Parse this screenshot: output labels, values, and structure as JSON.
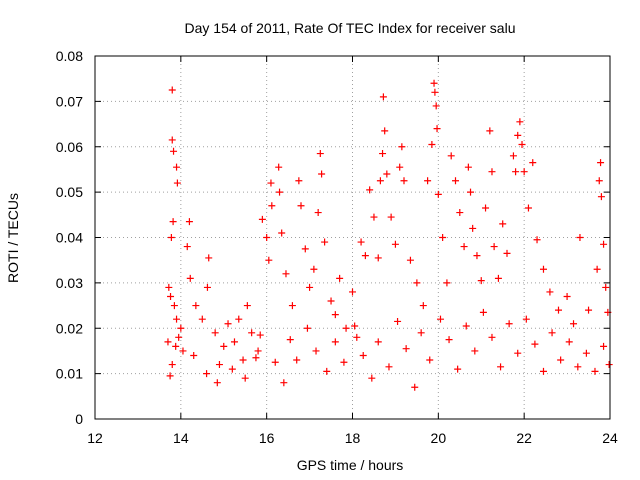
{
  "chart_data": {
    "type": "scatter",
    "title": "Day 154 of 2011, Rate Of TEC Index for receiver salu",
    "xlabel": "GPS time / hours",
    "ylabel": "ROTI / TECUs",
    "xlim": [
      12,
      24
    ],
    "ylim": [
      0,
      0.08
    ],
    "x_ticks": [
      12,
      14,
      16,
      18,
      20,
      22,
      24
    ],
    "x_tick_labels": [
      "12",
      "14",
      "16",
      "18",
      "20",
      "22",
      "24"
    ],
    "y_ticks": [
      0,
      0.01,
      0.02,
      0.03,
      0.04,
      0.05,
      0.06,
      0.07,
      0.08
    ],
    "y_tick_labels": [
      "0",
      "0.01",
      "0.02",
      "0.03",
      "0.04",
      "0.05",
      "0.06",
      "0.07",
      "0.08"
    ],
    "grid": true,
    "marker": "+",
    "series": [
      {
        "name": "ROTI",
        "color": "#ff0000",
        "points": [
          [
            13.8,
            0.0725
          ],
          [
            13.8,
            0.0615
          ],
          [
            13.83,
            0.059
          ],
          [
            13.9,
            0.0555
          ],
          [
            13.92,
            0.052
          ],
          [
            14.2,
            0.0435
          ],
          [
            13.82,
            0.0435
          ],
          [
            13.78,
            0.04
          ],
          [
            13.72,
            0.029
          ],
          [
            13.76,
            0.027
          ],
          [
            13.85,
            0.025
          ],
          [
            13.9,
            0.022
          ],
          [
            13.95,
            0.018
          ],
          [
            13.7,
            0.017
          ],
          [
            13.88,
            0.016
          ],
          [
            14.05,
            0.015
          ],
          [
            13.8,
            0.012
          ],
          [
            13.75,
            0.0095
          ],
          [
            14.15,
            0.038
          ],
          [
            14.22,
            0.031
          ],
          [
            14.35,
            0.025
          ],
          [
            14.5,
            0.022
          ],
          [
            14.65,
            0.0355
          ],
          [
            14.62,
            0.029
          ],
          [
            14.8,
            0.019
          ],
          [
            14.9,
            0.012
          ],
          [
            15.0,
            0.016
          ],
          [
            15.1,
            0.021
          ],
          [
            15.25,
            0.017
          ],
          [
            15.35,
            0.022
          ],
          [
            15.45,
            0.013
          ],
          [
            15.55,
            0.025
          ],
          [
            15.65,
            0.019
          ],
          [
            15.75,
            0.0135
          ],
          [
            15.85,
            0.0185
          ],
          [
            15.9,
            0.044
          ],
          [
            16.0,
            0.04
          ],
          [
            16.05,
            0.035
          ],
          [
            16.1,
            0.052
          ],
          [
            16.12,
            0.047
          ],
          [
            16.28,
            0.0555
          ],
          [
            16.3,
            0.05
          ],
          [
            16.35,
            0.041
          ],
          [
            16.45,
            0.032
          ],
          [
            16.6,
            0.025
          ],
          [
            16.75,
            0.0525
          ],
          [
            16.8,
            0.047
          ],
          [
            16.9,
            0.0375
          ],
          [
            17.0,
            0.029
          ],
          [
            17.1,
            0.033
          ],
          [
            17.2,
            0.0455
          ],
          [
            17.25,
            0.0585
          ],
          [
            17.28,
            0.054
          ],
          [
            17.35,
            0.039
          ],
          [
            17.5,
            0.026
          ],
          [
            17.6,
            0.023
          ],
          [
            17.7,
            0.031
          ],
          [
            17.85,
            0.02
          ],
          [
            18.0,
            0.028
          ],
          [
            18.1,
            0.018
          ],
          [
            18.2,
            0.039
          ],
          [
            18.3,
            0.036
          ],
          [
            18.4,
            0.0505
          ],
          [
            18.5,
            0.0445
          ],
          [
            18.6,
            0.0355
          ],
          [
            18.65,
            0.0525
          ],
          [
            18.7,
            0.0585
          ],
          [
            18.72,
            0.071
          ],
          [
            18.75,
            0.0635
          ],
          [
            18.8,
            0.054
          ],
          [
            18.9,
            0.0445
          ],
          [
            19.0,
            0.0385
          ],
          [
            19.1,
            0.0555
          ],
          [
            19.15,
            0.06
          ],
          [
            19.2,
            0.0525
          ],
          [
            19.35,
            0.035
          ],
          [
            19.5,
            0.03
          ],
          [
            19.65,
            0.025
          ],
          [
            19.75,
            0.0525
          ],
          [
            19.85,
            0.0605
          ],
          [
            19.9,
            0.074
          ],
          [
            19.92,
            0.072
          ],
          [
            19.95,
            0.069
          ],
          [
            19.97,
            0.064
          ],
          [
            20.0,
            0.0495
          ],
          [
            20.1,
            0.04
          ],
          [
            20.2,
            0.03
          ],
          [
            20.3,
            0.058
          ],
          [
            20.4,
            0.0525
          ],
          [
            20.5,
            0.0455
          ],
          [
            20.6,
            0.038
          ],
          [
            20.7,
            0.0555
          ],
          [
            20.75,
            0.05
          ],
          [
            20.8,
            0.042
          ],
          [
            20.9,
            0.036
          ],
          [
            21.0,
            0.0305
          ],
          [
            21.1,
            0.0465
          ],
          [
            21.2,
            0.0635
          ],
          [
            21.25,
            0.0545
          ],
          [
            21.3,
            0.038
          ],
          [
            21.4,
            0.031
          ],
          [
            21.5,
            0.043
          ],
          [
            21.6,
            0.0365
          ],
          [
            21.75,
            0.058
          ],
          [
            21.8,
            0.0545
          ],
          [
            21.85,
            0.0625
          ],
          [
            21.9,
            0.0655
          ],
          [
            21.95,
            0.0605
          ],
          [
            22.0,
            0.0545
          ],
          [
            22.1,
            0.0465
          ],
          [
            22.2,
            0.0565
          ],
          [
            22.3,
            0.0395
          ],
          [
            22.45,
            0.033
          ],
          [
            22.6,
            0.028
          ],
          [
            22.8,
            0.024
          ],
          [
            23.0,
            0.027
          ],
          [
            23.15,
            0.021
          ],
          [
            23.3,
            0.04
          ],
          [
            23.5,
            0.024
          ],
          [
            23.7,
            0.033
          ],
          [
            23.75,
            0.0525
          ],
          [
            23.78,
            0.0565
          ],
          [
            23.8,
            0.049
          ],
          [
            23.85,
            0.0385
          ],
          [
            23.9,
            0.029
          ],
          [
            23.95,
            0.0235
          ],
          [
            14.0,
            0.02
          ],
          [
            14.3,
            0.014
          ],
          [
            14.6,
            0.01
          ],
          [
            14.85,
            0.008
          ],
          [
            15.2,
            0.011
          ],
          [
            15.5,
            0.009
          ],
          [
            15.8,
            0.015
          ],
          [
            16.2,
            0.0125
          ],
          [
            16.4,
            0.008
          ],
          [
            16.55,
            0.0175
          ],
          [
            16.7,
            0.013
          ],
          [
            16.95,
            0.02
          ],
          [
            17.15,
            0.015
          ],
          [
            17.4,
            0.0105
          ],
          [
            17.6,
            0.017
          ],
          [
            17.8,
            0.0125
          ],
          [
            18.05,
            0.0205
          ],
          [
            18.25,
            0.014
          ],
          [
            18.45,
            0.009
          ],
          [
            18.6,
            0.017
          ],
          [
            18.85,
            0.0115
          ],
          [
            19.05,
            0.0215
          ],
          [
            19.25,
            0.0155
          ],
          [
            19.45,
            0.007
          ],
          [
            19.6,
            0.019
          ],
          [
            19.8,
            0.013
          ],
          [
            20.05,
            0.022
          ],
          [
            20.25,
            0.0175
          ],
          [
            20.45,
            0.011
          ],
          [
            20.65,
            0.0205
          ],
          [
            20.85,
            0.015
          ],
          [
            21.05,
            0.0235
          ],
          [
            21.25,
            0.018
          ],
          [
            21.45,
            0.0115
          ],
          [
            21.65,
            0.021
          ],
          [
            21.85,
            0.0145
          ],
          [
            22.05,
            0.022
          ],
          [
            22.25,
            0.0165
          ],
          [
            22.45,
            0.0105
          ],
          [
            22.65,
            0.019
          ],
          [
            22.85,
            0.013
          ],
          [
            23.05,
            0.017
          ],
          [
            23.25,
            0.0115
          ],
          [
            23.45,
            0.0145
          ],
          [
            23.65,
            0.0105
          ],
          [
            23.85,
            0.016
          ],
          [
            23.98,
            0.012
          ]
        ]
      }
    ]
  }
}
